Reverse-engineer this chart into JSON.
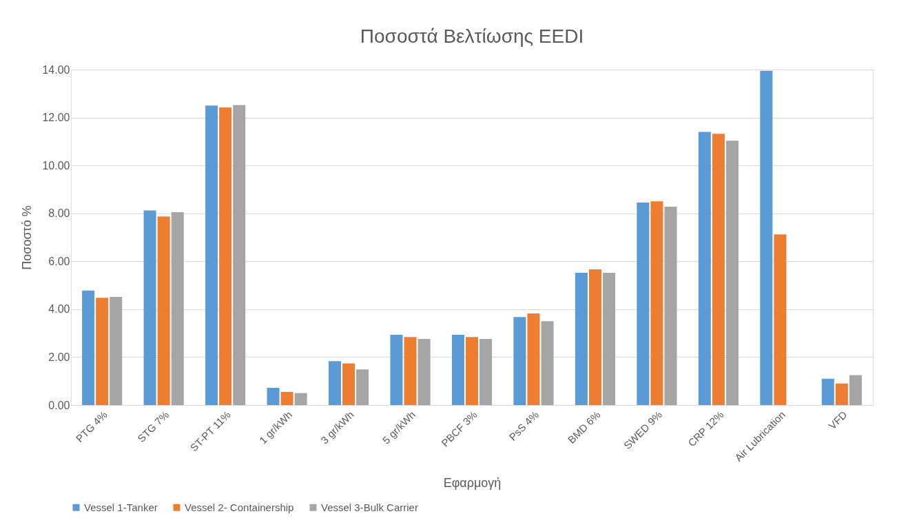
{
  "chart_data": {
    "type": "bar",
    "title": "Ποσοστά Βελτίωσης EEDI",
    "xlabel": "Εφαρμογή",
    "ylabel": "Ποσοστό %",
    "categories": [
      "PTG 4%",
      "STG 7%",
      "ST-PT 11%",
      "1 gr/kWh",
      "3 gr/kWh",
      "5 gr/kWh",
      "PBCF 3%",
      "PsS 4%",
      "BMD 6%",
      "SWED 9%",
      "CRP 12%",
      "Air Lubrication",
      "VFD"
    ],
    "series": [
      {
        "name": "Vessel 1-Tanker",
        "color": "#5b9bd5",
        "values": [
          4.78,
          8.12,
          12.5,
          0.72,
          1.83,
          2.93,
          2.93,
          3.67,
          5.52,
          8.45,
          11.4,
          13.95,
          1.1
        ]
      },
      {
        "name": "Vessel 2- Containership",
        "color": "#ed7d31",
        "values": [
          4.48,
          7.87,
          12.42,
          0.55,
          1.74,
          2.84,
          2.84,
          3.82,
          5.66,
          8.5,
          11.32,
          7.12,
          0.9
        ]
      },
      {
        "name": "Vessel 3-Bulk Carrier",
        "color": "#a5a5a5",
        "values": [
          4.51,
          8.05,
          12.52,
          0.5,
          1.49,
          2.76,
          2.76,
          3.5,
          5.52,
          8.28,
          11.03,
          null,
          1.25
        ]
      }
    ],
    "ylim": [
      0,
      14
    ],
    "yticks": [
      {
        "value": 0,
        "label": "0.00"
      },
      {
        "value": 2,
        "label": "2.00"
      },
      {
        "value": 4,
        "label": "4.00"
      },
      {
        "value": 6,
        "label": "6.00"
      },
      {
        "value": 8,
        "label": "8.00"
      },
      {
        "value": 10,
        "label": "10.00"
      },
      {
        "value": 12,
        "label": "12.00"
      },
      {
        "value": 14,
        "label": "14.00"
      }
    ],
    "grid": "y",
    "legend": "bottom"
  }
}
